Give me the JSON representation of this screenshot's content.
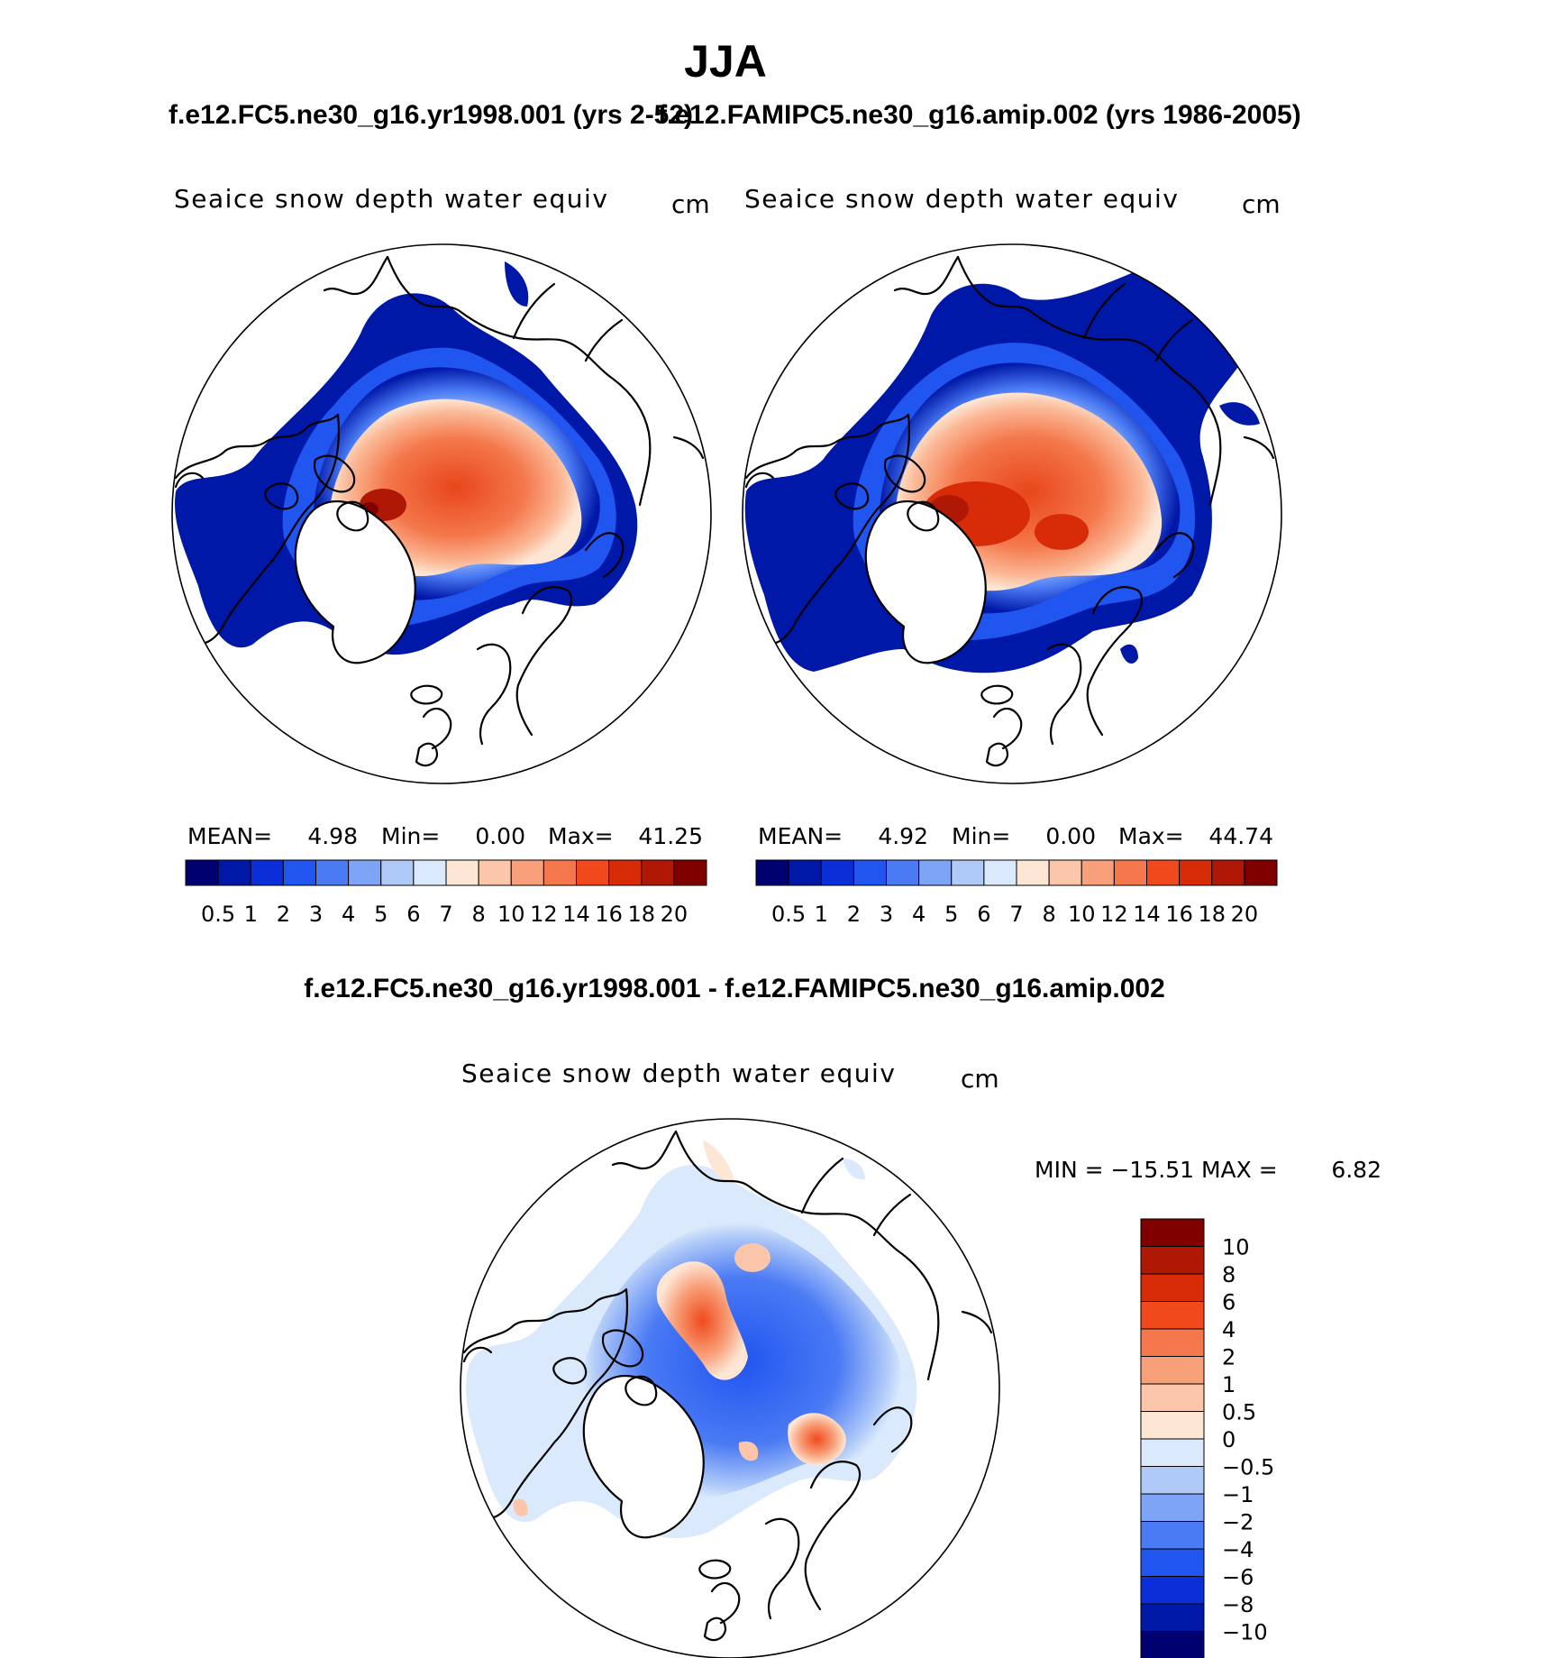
{
  "figure": {
    "title": "JJA",
    "subtitle_left": "f.e12.FC5.ne30_g16.yr1998.001 (yrs 2-52)",
    "subtitle_right": "f.e12.FAMIPC5.ne30_g16.amip.002 (yrs 1986-2005)",
    "diff_title": "f.e12.FC5.ne30_g16.yr1998.001 - f.e12.FAMIPC5.ne30_g16.amip.002"
  },
  "panels": [
    {
      "variable": "Seaice snow depth water equiv",
      "units": "cm",
      "stats": {
        "mean_label": "MEAN=",
        "mean": "4.98",
        "min_label": "Min=",
        "min": "0.00",
        "max_label": "Max=",
        "max": "41.25"
      }
    },
    {
      "variable": "Seaice snow depth water equiv",
      "units": "cm",
      "stats": {
        "mean_label": "MEAN=",
        "mean": "4.92",
        "min_label": "Min=",
        "min": "0.00",
        "max_label": "Max=",
        "max": "44.74"
      }
    },
    {
      "variable": "Seaice snow depth water equiv",
      "units": "cm",
      "stats_text": "MIN = −15.51 MAX =",
      "max_value": "6.82"
    }
  ],
  "colorbar_main": {
    "labels": [
      "0.5",
      "1",
      "2",
      "3",
      "4",
      "5",
      "6",
      "7",
      "8",
      "10",
      "12",
      "14",
      "16",
      "18",
      "20"
    ],
    "colors": [
      "#000070",
      "#0018a8",
      "#0a2fd8",
      "#2055f0",
      "#4a7af4",
      "#7ea4f8",
      "#b0caf8",
      "#daeafc",
      "#fde6d4",
      "#fcc6aa",
      "#f8a07a",
      "#f4784c",
      "#f04a1c",
      "#d82c08",
      "#b01806",
      "#800000"
    ]
  },
  "colorbar_diff": {
    "labels": [
      "10",
      "8",
      "6",
      "4",
      "2",
      "1",
      "0.5",
      "0",
      "−0.5",
      "−1",
      "−2",
      "−4",
      "−6",
      "−8",
      "−10"
    ],
    "colors": [
      "#800000",
      "#b01806",
      "#d82c08",
      "#f04a1c",
      "#f4784c",
      "#f8a07a",
      "#fcc6aa",
      "#fde6d4",
      "#daeafc",
      "#b0caf8",
      "#7ea4f8",
      "#4a7af4",
      "#2055f0",
      "#0a2fd8",
      "#0018a8",
      "#000070"
    ]
  },
  "colors": {
    "land": "#ffffff",
    "outline": "#000000"
  }
}
